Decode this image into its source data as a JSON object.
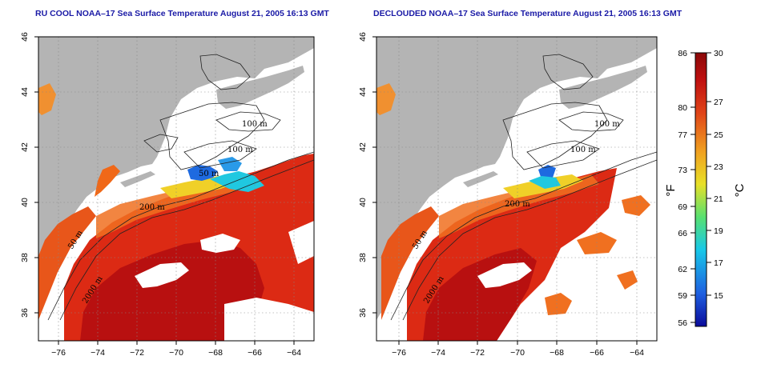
{
  "titles": {
    "left": "RU COOL NOAA–17 Sea Surface Temperature August 21, 2005 16:13 GMT",
    "right": "DECLOUDED NOAA–17 Sea Surface Temperature August 21, 2005 16:13 GMT"
  },
  "axes": {
    "x_ticks": [
      "−76",
      "−74",
      "−72",
      "−70",
      "−68",
      "−66",
      "−64"
    ],
    "y_ticks": [
      "36",
      "38",
      "40",
      "42",
      "44",
      "46"
    ],
    "x_range": [
      -77,
      -63
    ],
    "y_range": [
      35,
      46
    ]
  },
  "contour_labels": {
    "left": [
      "100 m",
      "100 m",
      "50 m",
      "200 m",
      "50 m",
      "2000 m"
    ],
    "right": [
      "100 m",
      "100 m",
      "200 m",
      "50 m",
      "2000 m"
    ]
  },
  "colorbar": {
    "fahrenheit_ticks": [
      "86",
      "80",
      "77",
      "73",
      "69",
      "66",
      "62",
      "59",
      "56"
    ],
    "celsius_ticks": [
      "30",
      "27",
      "25",
      "23",
      "21",
      "19",
      "17",
      "15"
    ],
    "fahrenheit_unit": "°F",
    "celsius_unit": "°C",
    "range_celsius": [
      13,
      30
    ],
    "colors": [
      "#0a0a9a",
      "#1e5fe0",
      "#18c8e8",
      "#58e070",
      "#e8e028",
      "#f0a020",
      "#e04418",
      "#c01010",
      "#8a0808"
    ]
  },
  "colors": {
    "land": "#b4b4b4",
    "no_data": "#ffffff",
    "title": "#1a1aa6",
    "warm_sst": "#dc2a14"
  }
}
